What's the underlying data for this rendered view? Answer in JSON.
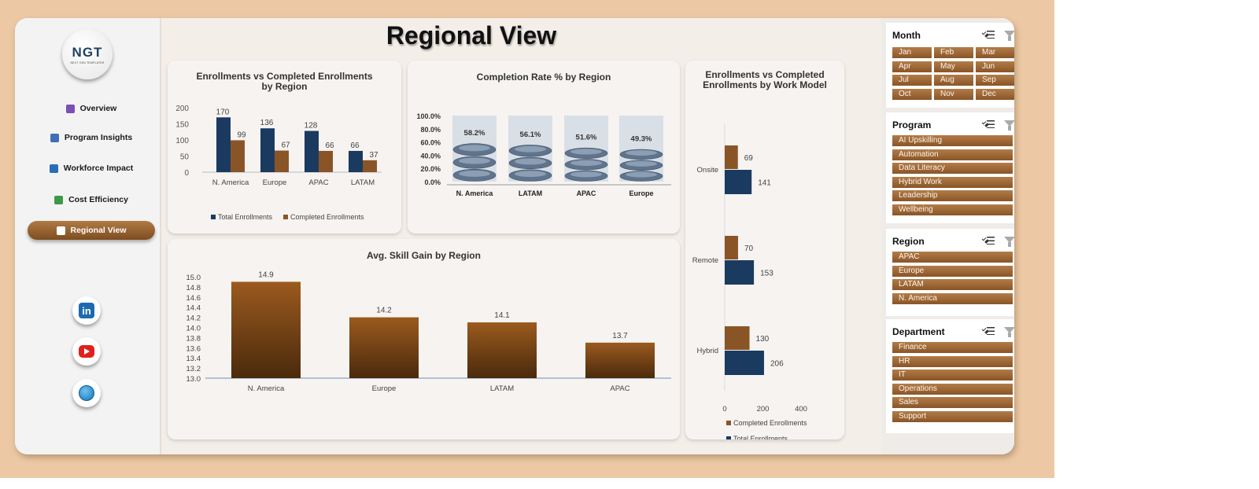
{
  "page": {
    "title": "Regional View"
  },
  "logo": {
    "main": "NGT",
    "sub": "NEXT GEN TEMPLATES"
  },
  "nav": [
    {
      "label": "Overview",
      "icon": "bar-chart-icon",
      "color": "#7b4fb3"
    },
    {
      "label": "Program Insights",
      "icon": "line-chart-icon",
      "color": "#3f6fb6"
    },
    {
      "label": "Workforce Impact",
      "icon": "column-chart-icon",
      "color": "#2a6fb6"
    },
    {
      "label": "Cost Efficiency",
      "icon": "money-icon",
      "color": "#3a9a4a"
    },
    {
      "label": "Regional View",
      "icon": "map-icon",
      "color": "#ffffff"
    }
  ],
  "social": [
    {
      "name": "linkedin-icon",
      "glyph": "in"
    },
    {
      "name": "youtube-icon",
      "glyph": ""
    },
    {
      "name": "website-globe-icon",
      "glyph": ""
    }
  ],
  "colors": {
    "navy": "#1b3a60",
    "brown": "#8a5526",
    "accent": "#9b6431"
  },
  "charts": {
    "enroll_region": {
      "title": "Enrollments vs Completed Enrollments by Region",
      "type": "bar",
      "categories": [
        "N. America",
        "Europe",
        "APAC",
        "LATAM"
      ],
      "series": [
        {
          "name": "Total Enrollments",
          "values": [
            170,
            136,
            128,
            66
          ]
        },
        {
          "name": "Completed Enrollments",
          "values": [
            99,
            67,
            66,
            37
          ]
        }
      ],
      "yticks": [
        0,
        50,
        100,
        150,
        200
      ],
      "ylim": [
        0,
        200
      ]
    },
    "completion_rate": {
      "title": "Completion Rate % by Region",
      "type": "bar",
      "categories": [
        "N. America",
        "LATAM",
        "APAC",
        "Europe"
      ],
      "values": [
        58.2,
        56.1,
        51.6,
        49.3
      ],
      "value_labels": [
        "58.2%",
        "56.1%",
        "51.6%",
        "49.3%"
      ],
      "yticks": [
        "0.0%",
        "20.0%",
        "40.0%",
        "60.0%",
        "80.0%",
        "100.0%"
      ],
      "ylim": [
        0,
        100
      ]
    },
    "skill_gain": {
      "title": "Avg. Skill Gain by Region",
      "type": "bar",
      "categories": [
        "N. America",
        "Europe",
        "LATAM",
        "APAC"
      ],
      "values": [
        14.9,
        14.2,
        14.1,
        13.7
      ],
      "yticks": [
        "13.0",
        "13.2",
        "13.4",
        "13.6",
        "13.8",
        "14.0",
        "14.2",
        "14.4",
        "14.6",
        "14.8",
        "15.0"
      ],
      "ylim": [
        13.0,
        15.0
      ]
    },
    "work_model": {
      "title_line1": "Enrollments vs Completed",
      "title_line2": "Enrollments by Work Model",
      "type": "bar",
      "categories": [
        "Onsite",
        "Remote",
        "Hybrid"
      ],
      "series": [
        {
          "name": "Completed Enrollments",
          "values": [
            69,
            70,
            130
          ]
        },
        {
          "name": "Total Enrollments",
          "values": [
            141,
            153,
            206
          ]
        }
      ],
      "xticks": [
        0,
        200,
        400
      ],
      "xlim": [
        0,
        400
      ]
    }
  },
  "slicers": [
    {
      "title": "Month",
      "items": [
        "Jan",
        "Feb",
        "Mar",
        "Apr",
        "May",
        "Jun",
        "Jul",
        "Aug",
        "Sep",
        "Oct",
        "Nov",
        "Dec"
      ]
    },
    {
      "title": "Program",
      "items": [
        "AI Upskilling",
        "Automation",
        "Data Literacy",
        "Hybrid Work",
        "Leadership",
        "Wellbeing"
      ]
    },
    {
      "title": "Region",
      "items": [
        "APAC",
        "Europe",
        "LATAM",
        "N. America"
      ]
    },
    {
      "title": "Department",
      "items": [
        "Finance",
        "HR",
        "IT",
        "Operations",
        "Sales",
        "Support"
      ]
    }
  ]
}
